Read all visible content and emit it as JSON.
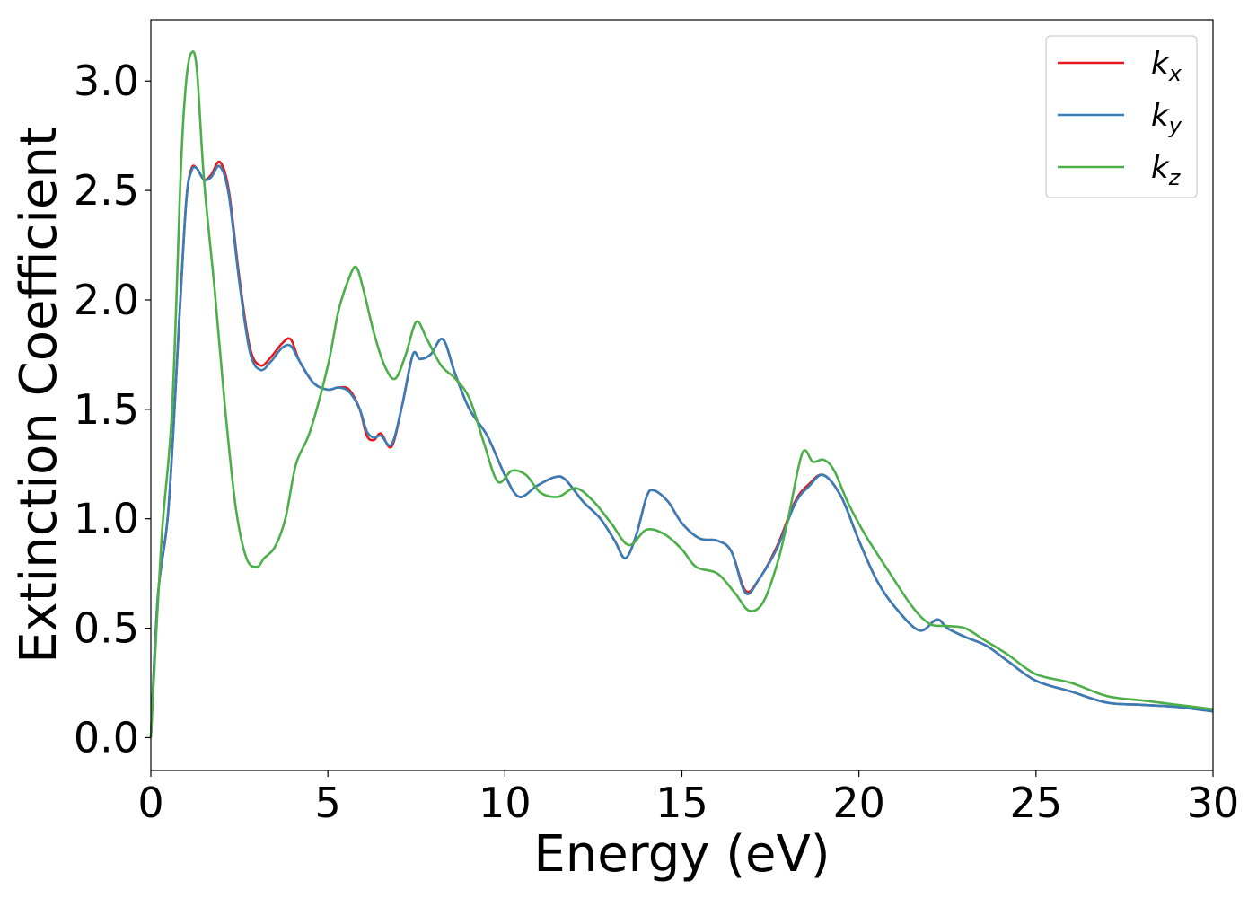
{
  "chart_data": {
    "type": "line",
    "title": "",
    "xlabel": "Energy (eV)",
    "ylabel": "Extinction Coefficient",
    "xlim": [
      0,
      30
    ],
    "ylim": [
      -0.15,
      3.28
    ],
    "xticks": [
      0,
      5,
      10,
      15,
      20,
      25,
      30
    ],
    "xtick_labels": [
      "0",
      "5",
      "10",
      "15",
      "20",
      "25",
      "30"
    ],
    "yticks": [
      0.0,
      0.5,
      1.0,
      1.5,
      2.0,
      2.5,
      3.0
    ],
    "ytick_labels": [
      "0.0",
      "0.5",
      "1.0",
      "1.5",
      "2.0",
      "2.5",
      "3.0"
    ],
    "grid": false,
    "legend_position": "top-right",
    "series": [
      {
        "name": "k",
        "subscript": "x",
        "color": "#e41a1c",
        "x": [
          0,
          0.2,
          0.5,
          0.8,
          1.0,
          1.15,
          1.3,
          1.5,
          1.7,
          1.95,
          2.2,
          2.5,
          2.8,
          3.1,
          3.4,
          3.7,
          3.95,
          4.2,
          4.6,
          5.0,
          5.3,
          5.6,
          5.9,
          6.1,
          6.3,
          6.5,
          6.8,
          7.1,
          7.4,
          7.6,
          7.9,
          8.25,
          8.6,
          9.0,
          9.5,
          10.0,
          10.4,
          10.9,
          11.4,
          11.7,
          12.2,
          12.7,
          13.1,
          13.4,
          13.7,
          14.0,
          14.2,
          14.6,
          15.0,
          15.5,
          16.0,
          16.4,
          16.8,
          17.2,
          17.7,
          18.2,
          18.6,
          19.0,
          19.5,
          20.0,
          20.5,
          21.0,
          21.7,
          22.2,
          22.5,
          23.0,
          23.6,
          24.2,
          25.0,
          26.0,
          27.0,
          28.0,
          29.0,
          30.0
        ],
        "values": [
          0.0,
          0.65,
          1.05,
          1.9,
          2.45,
          2.6,
          2.6,
          2.55,
          2.57,
          2.63,
          2.5,
          2.1,
          1.78,
          1.7,
          1.74,
          1.8,
          1.82,
          1.72,
          1.62,
          1.59,
          1.6,
          1.59,
          1.5,
          1.38,
          1.36,
          1.39,
          1.33,
          1.52,
          1.75,
          1.73,
          1.75,
          1.82,
          1.66,
          1.5,
          1.38,
          1.2,
          1.1,
          1.15,
          1.19,
          1.18,
          1.08,
          1.0,
          0.9,
          0.82,
          0.92,
          1.1,
          1.13,
          1.08,
          0.98,
          0.91,
          0.9,
          0.85,
          0.67,
          0.73,
          0.88,
          1.08,
          1.16,
          1.2,
          1.1,
          0.9,
          0.72,
          0.6,
          0.49,
          0.54,
          0.5,
          0.46,
          0.42,
          0.35,
          0.26,
          0.21,
          0.16,
          0.15,
          0.14,
          0.12
        ]
      },
      {
        "name": "k",
        "subscript": "y",
        "color": "#377eb8",
        "x": [
          0,
          0.2,
          0.5,
          0.8,
          1.0,
          1.15,
          1.3,
          1.5,
          1.7,
          1.95,
          2.2,
          2.5,
          2.8,
          3.1,
          3.4,
          3.7,
          3.95,
          4.2,
          4.6,
          5.0,
          5.3,
          5.6,
          5.9,
          6.1,
          6.3,
          6.5,
          6.8,
          7.1,
          7.4,
          7.6,
          7.9,
          8.25,
          8.6,
          9.0,
          9.5,
          10.0,
          10.4,
          10.9,
          11.4,
          11.7,
          12.2,
          12.7,
          13.1,
          13.4,
          13.7,
          14.0,
          14.2,
          14.6,
          15.0,
          15.5,
          16.0,
          16.4,
          16.8,
          17.2,
          17.7,
          18.2,
          18.6,
          19.0,
          19.5,
          20.0,
          20.5,
          21.0,
          21.7,
          22.2,
          22.5,
          23.0,
          23.6,
          24.2,
          25.0,
          26.0,
          27.0,
          28.0,
          29.0,
          30.0
        ],
        "values": [
          0.0,
          0.65,
          1.05,
          1.9,
          2.45,
          2.59,
          2.6,
          2.55,
          2.56,
          2.61,
          2.48,
          2.08,
          1.76,
          1.68,
          1.72,
          1.78,
          1.79,
          1.72,
          1.62,
          1.59,
          1.6,
          1.58,
          1.5,
          1.4,
          1.37,
          1.38,
          1.34,
          1.52,
          1.75,
          1.73,
          1.75,
          1.82,
          1.66,
          1.5,
          1.38,
          1.2,
          1.1,
          1.15,
          1.19,
          1.18,
          1.08,
          1.0,
          0.9,
          0.82,
          0.92,
          1.1,
          1.13,
          1.08,
          0.98,
          0.91,
          0.9,
          0.85,
          0.66,
          0.73,
          0.87,
          1.07,
          1.15,
          1.2,
          1.1,
          0.9,
          0.72,
          0.6,
          0.49,
          0.54,
          0.5,
          0.46,
          0.42,
          0.35,
          0.26,
          0.21,
          0.16,
          0.15,
          0.14,
          0.12
        ]
      },
      {
        "name": "k",
        "subscript": "z",
        "color": "#4daf4a",
        "x": [
          0,
          0.3,
          0.6,
          0.85,
          1.0,
          1.15,
          1.3,
          1.5,
          1.8,
          2.1,
          2.4,
          2.7,
          3.0,
          3.2,
          3.5,
          3.8,
          4.1,
          4.5,
          5.0,
          5.3,
          5.6,
          5.8,
          6.0,
          6.3,
          6.6,
          6.9,
          7.2,
          7.5,
          7.8,
          8.2,
          8.6,
          9.0,
          9.4,
          9.8,
          10.2,
          10.6,
          11.0,
          11.5,
          12.0,
          12.5,
          13.0,
          13.5,
          14.0,
          14.5,
          15.0,
          15.4,
          16.0,
          16.5,
          16.9,
          17.3,
          17.7,
          18.0,
          18.4,
          18.7,
          19.0,
          19.3,
          19.7,
          20.2,
          20.8,
          21.5,
          22.0,
          22.5,
          23.0,
          23.5,
          24.2,
          25.0,
          26.0,
          27.0,
          28.0,
          29.0,
          30.0
        ],
        "values": [
          0.0,
          0.9,
          1.5,
          2.6,
          3.0,
          3.13,
          3.05,
          2.55,
          2.05,
          1.5,
          1.05,
          0.82,
          0.78,
          0.82,
          0.87,
          1.0,
          1.25,
          1.4,
          1.7,
          1.95,
          2.1,
          2.15,
          2.05,
          1.85,
          1.7,
          1.64,
          1.75,
          1.9,
          1.82,
          1.7,
          1.64,
          1.55,
          1.35,
          1.17,
          1.22,
          1.2,
          1.12,
          1.1,
          1.14,
          1.08,
          0.98,
          0.88,
          0.95,
          0.93,
          0.86,
          0.78,
          0.75,
          0.66,
          0.58,
          0.62,
          0.8,
          1.0,
          1.3,
          1.26,
          1.27,
          1.22,
          1.07,
          0.92,
          0.77,
          0.6,
          0.52,
          0.51,
          0.5,
          0.45,
          0.38,
          0.29,
          0.25,
          0.19,
          0.17,
          0.15,
          0.13
        ]
      }
    ]
  }
}
